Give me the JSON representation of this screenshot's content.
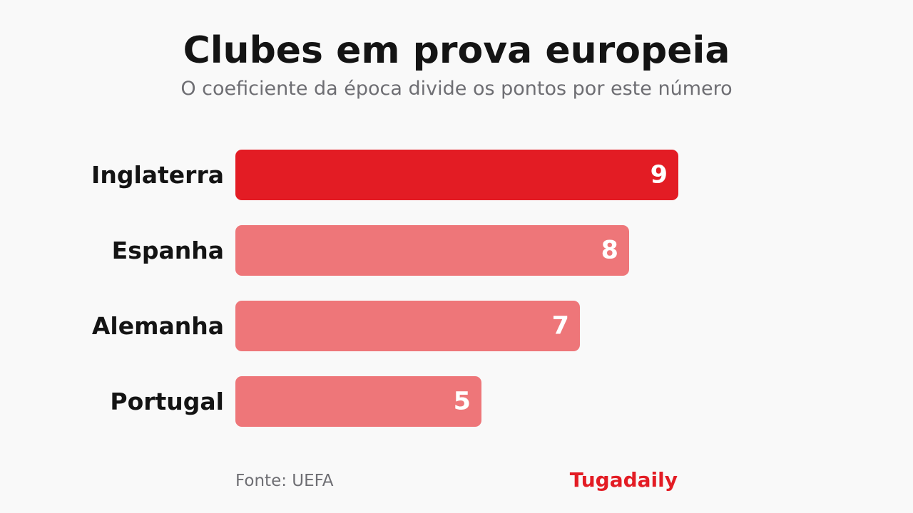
{
  "title": "Clubes em prova europeia",
  "subtitle": "O coeficiente da época divide os pontos por este número",
  "footer": {
    "source": "Fonte: UEFA",
    "brand": "Tugadaily"
  },
  "colors": {
    "highlight": "#e31c24",
    "bar": "#ee7679",
    "brand": "#e31c24"
  },
  "chart_data": {
    "type": "bar",
    "orientation": "horizontal",
    "categories": [
      "Inglaterra",
      "Espanha",
      "Alemanha",
      "Portugal"
    ],
    "values": [
      9,
      8,
      7,
      5
    ],
    "highlighted": "Inglaterra",
    "xlim": [
      0,
      9
    ],
    "grid": false,
    "legend": "none",
    "title": "Clubes em prova europeia",
    "subtitle": "O coeficiente da época divide os pontos por este número"
  }
}
